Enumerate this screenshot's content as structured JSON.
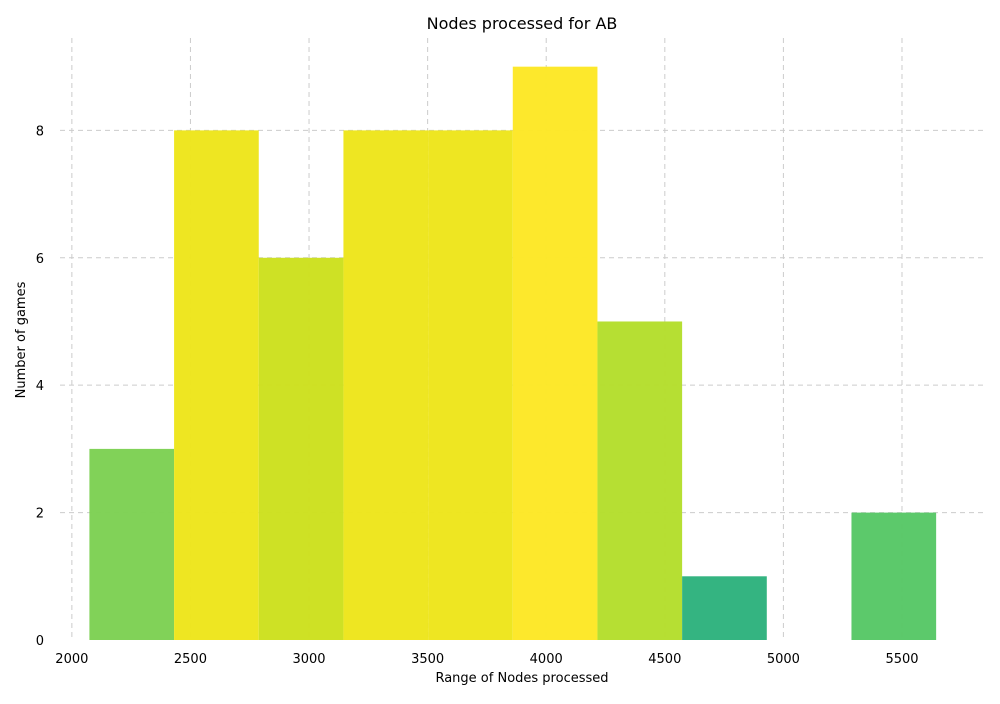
{
  "chart_data": {
    "type": "bar",
    "title": "Nodes processed for AB",
    "xlabel": "Range of Nodes processed",
    "ylabel": "Number of games",
    "xlim": [
      1950,
      5850
    ],
    "ylim": [
      0,
      9.45
    ],
    "x_ticks": [
      2000,
      2500,
      3000,
      3500,
      4000,
      4500,
      5000,
      5500
    ],
    "y_ticks": [
      0,
      2,
      4,
      6,
      8
    ],
    "grid": true,
    "bins": [
      {
        "start": 2074,
        "end": 2431,
        "value": 3,
        "color": "#7dd153"
      },
      {
        "start": 2431,
        "end": 2788,
        "value": 8,
        "color": "#ede51b"
      },
      {
        "start": 2788,
        "end": 3145,
        "value": 6,
        "color": "#cce01e"
      },
      {
        "start": 3145,
        "end": 3502,
        "value": 8,
        "color": "#ede51b"
      },
      {
        "start": 3502,
        "end": 3859,
        "value": 8,
        "color": "#ede51b"
      },
      {
        "start": 3859,
        "end": 4216,
        "value": 9,
        "color": "#fde725"
      },
      {
        "start": 4216,
        "end": 4573,
        "value": 5,
        "color": "#b4de2c"
      },
      {
        "start": 4573,
        "end": 4930,
        "value": 1,
        "color": "#2db27d"
      },
      {
        "start": 4930,
        "end": 5287,
        "value": 0,
        "color": "#21918c"
      },
      {
        "start": 5287,
        "end": 5644,
        "value": 2,
        "color": "#57c766"
      }
    ],
    "colors": {
      "grid": "#cccccc"
    }
  }
}
